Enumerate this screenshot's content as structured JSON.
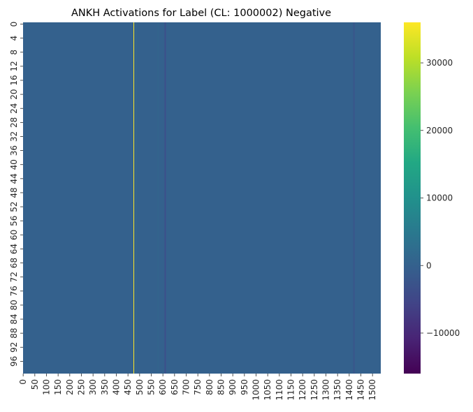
{
  "chart_data": {
    "type": "heatmap",
    "title": "ANKH Activations for Label (CL: 1000002) Negative",
    "xlabel": "",
    "ylabel": "",
    "rows": 100,
    "columns": 1536,
    "baseline_value": 0,
    "x_ticks": [
      "0",
      "50",
      "100",
      "150",
      "200",
      "250",
      "300",
      "350",
      "400",
      "450",
      "500",
      "550",
      "600",
      "650",
      "700",
      "750",
      "800",
      "850",
      "900",
      "950",
      "1000",
      "1050",
      "1100",
      "1150",
      "1200",
      "1250",
      "1300",
      "1350",
      "1400",
      "1450",
      "1500"
    ],
    "y_ticks": [
      "0",
      "4",
      "8",
      "12",
      "16",
      "20",
      "24",
      "28",
      "32",
      "36",
      "40",
      "44",
      "48",
      "52",
      "56",
      "60",
      "64",
      "68",
      "72",
      "76",
      "80",
      "84",
      "88",
      "92",
      "96"
    ],
    "colorscale": "viridis",
    "colorbar": {
      "vmin": -16000,
      "vmax": 36000,
      "ticks": [
        "−10000",
        "0",
        "10000",
        "20000",
        "30000"
      ],
      "tick_values": [
        -10000,
        0,
        10000,
        20000,
        30000
      ]
    },
    "notable_columns": [
      {
        "column": 474,
        "value": 36000
      },
      {
        "column": 486,
        "value": 1500
      },
      {
        "column": 578,
        "value": 1200
      },
      {
        "column": 608,
        "value": -5000
      },
      {
        "column": 612,
        "value": -1500
      },
      {
        "column": 1418,
        "value": -3000
      },
      {
        "column": 1422,
        "value": -1500
      }
    ]
  }
}
